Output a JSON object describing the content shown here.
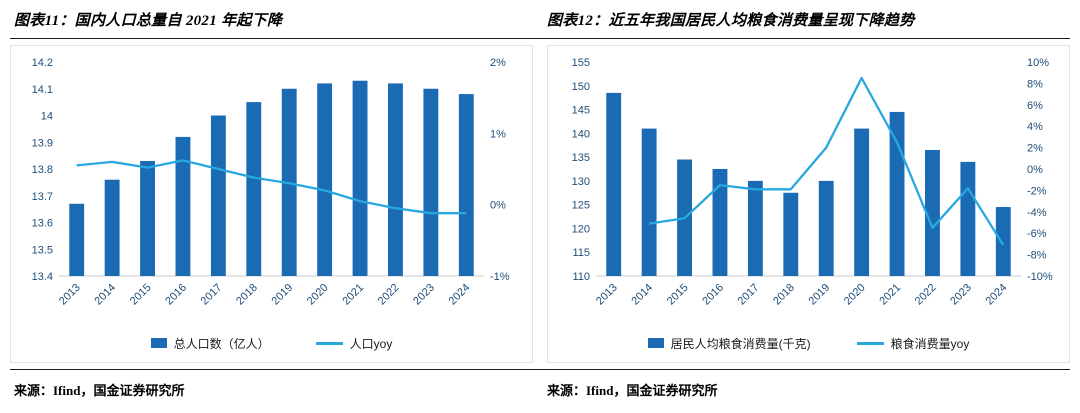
{
  "panels": [
    {
      "title": "图表11：国内人口总量自 2021 年起下降",
      "source": "来源：Ifind，国金证券研究所"
    },
    {
      "title": "图表12：近五年我国居民人均粮食消费量呈现下降趋势",
      "source": "来源：Ifind，国金证券研究所"
    }
  ],
  "chart_data": [
    {
      "type": "bar",
      "title": "图表11：国内人口总量自 2021 年起下降",
      "categories": [
        "2013",
        "2014",
        "2015",
        "2016",
        "2017",
        "2018",
        "2019",
        "2020",
        "2021",
        "2022",
        "2023",
        "2024"
      ],
      "series": [
        {
          "name": "总人口数（亿人）",
          "type": "bar",
          "axis": "left",
          "values": [
            13.67,
            13.76,
            13.83,
            13.92,
            14.0,
            14.05,
            14.1,
            14.12,
            14.13,
            14.12,
            14.1,
            14.08
          ]
        },
        {
          "name": "人口yoy",
          "type": "line",
          "axis": "right",
          "values": [
            0.55,
            0.6,
            0.52,
            0.62,
            0.5,
            0.38,
            0.3,
            0.2,
            0.05,
            -0.05,
            -0.12,
            -0.12
          ]
        }
      ],
      "left_axis": {
        "min": 13.4,
        "max": 14.2,
        "ticks": [
          "13.4",
          "13.5",
          "13.6",
          "13.7",
          "13.8",
          "13.9",
          "14",
          "14.1",
          "14.2"
        ]
      },
      "right_axis": {
        "min": -1,
        "max": 2,
        "ticks": [
          "-1%",
          "0%",
          "1%",
          "2%"
        ]
      },
      "legend_position": "bottom",
      "grid": false,
      "colors": {
        "bar": "#1A6AB4",
        "line": "#29A8E0"
      }
    },
    {
      "type": "bar",
      "title": "图表12：近五年我国居民人均粮食消费量呈现下降趋势",
      "categories": [
        "2013",
        "2014",
        "2015",
        "2016",
        "2017",
        "2018",
        "2019",
        "2020",
        "2021",
        "2022",
        "2023",
        "2024"
      ],
      "series": [
        {
          "name": "居民人均粮食消费量(千克)",
          "type": "bar",
          "axis": "left",
          "values": [
            148.5,
            141,
            134.5,
            132.5,
            130,
            127.5,
            130,
            141,
            144.5,
            136.5,
            134,
            124.5
          ]
        },
        {
          "name": "粮食消费量yoy",
          "type": "line",
          "axis": "right",
          "values": [
            null,
            -5.1,
            -4.6,
            -1.5,
            -1.9,
            -1.9,
            2.0,
            8.5,
            2.5,
            -5.5,
            -1.8,
            -7.1
          ]
        }
      ],
      "left_axis": {
        "min": 110,
        "max": 155,
        "ticks": [
          "110",
          "115",
          "120",
          "125",
          "130",
          "135",
          "140",
          "145",
          "150",
          "155"
        ]
      },
      "right_axis": {
        "min": -10,
        "max": 10,
        "ticks": [
          "-10%",
          "-8%",
          "-6%",
          "-4%",
          "-2%",
          "0%",
          "2%",
          "4%",
          "6%",
          "8%",
          "10%"
        ]
      },
      "legend_position": "bottom",
      "grid": false,
      "colors": {
        "bar": "#1A6AB4",
        "line": "#29A8E0"
      }
    }
  ],
  "style": {
    "axis_label_color": "#1F4E79",
    "rule_color": "#1a1a1a"
  }
}
